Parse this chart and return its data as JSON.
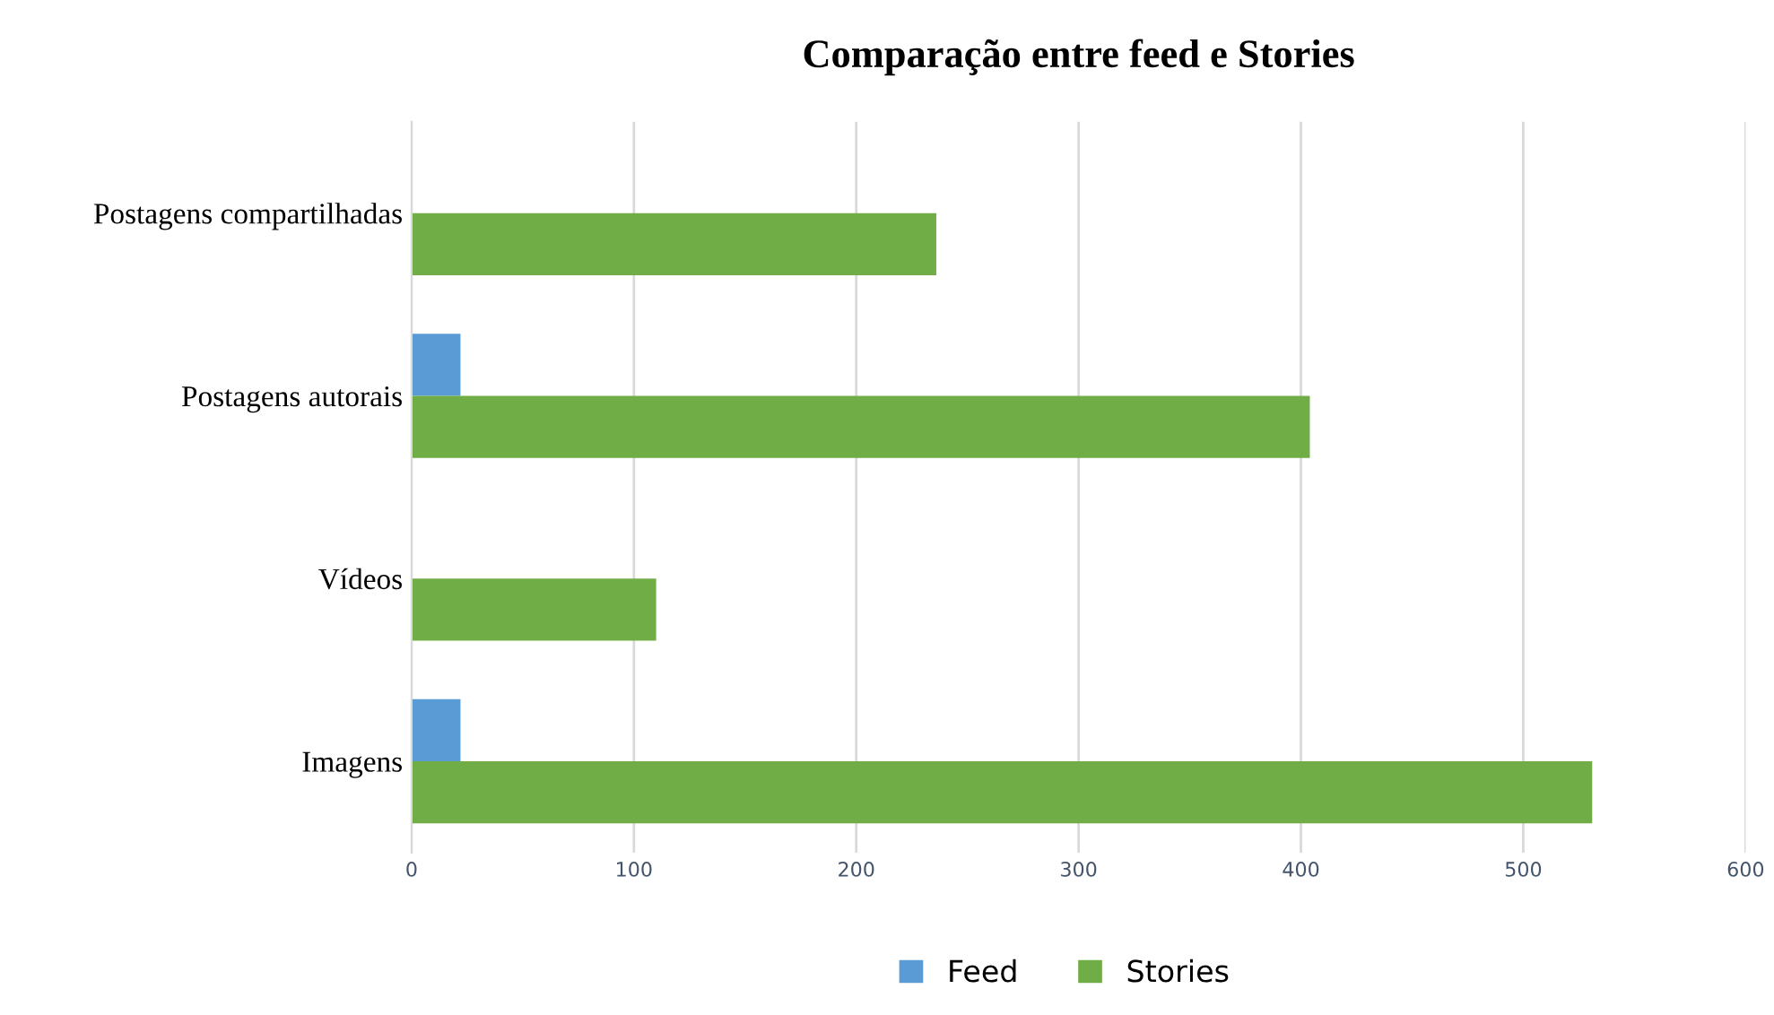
{
  "chart_data": {
    "type": "bar",
    "orientation": "horizontal",
    "title": "Comparação entre feed e Stories",
    "categories": [
      "Postagens compartilhadas",
      "Postagens autorais",
      "Vídeos",
      "Imagens"
    ],
    "series": [
      {
        "name": "Feed",
        "color": "#5b9bd5",
        "values": [
          0,
          22,
          0,
          22
        ]
      },
      {
        "name": "Stories",
        "color": "#70ad47",
        "values": [
          236,
          404,
          110,
          531
        ]
      }
    ],
    "xlim": [
      0,
      600
    ],
    "xticks": [
      0,
      100,
      200,
      300,
      400,
      500,
      600
    ],
    "grid": "x",
    "legend": "bottom"
  }
}
